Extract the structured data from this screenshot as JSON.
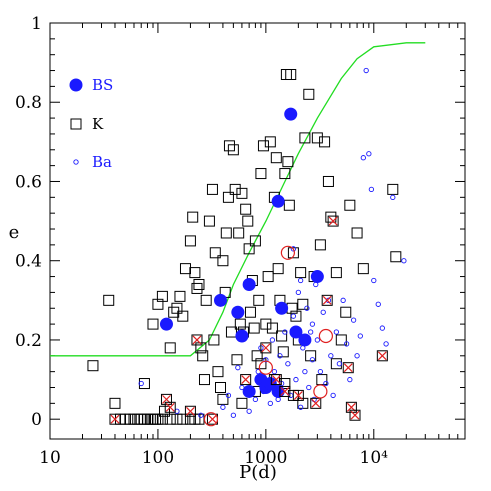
{
  "chart_data": {
    "type": "scatter",
    "xlabel": "P(d)",
    "ylabel": "e",
    "x_scale": "log",
    "xlim": [
      10,
      70000
    ],
    "ylim": [
      -0.05,
      1.0
    ],
    "xtick_labels": [
      {
        "value": 10,
        "label": "10"
      },
      {
        "value": 100,
        "label": "100"
      },
      {
        "value": 1000,
        "label": "1000"
      },
      {
        "value": 10000,
        "label": "10⁴"
      }
    ],
    "ytick_labels": [
      {
        "value": 0,
        "label": "0"
      },
      {
        "value": 0.2,
        "label": "0.2"
      },
      {
        "value": 0.4,
        "label": "0.4"
      },
      {
        "value": 0.6,
        "label": "0.6"
      },
      {
        "value": 0.8,
        "label": "0.8"
      },
      {
        "value": 1,
        "label": "1"
      }
    ],
    "grid": false,
    "legend_position": "top-left",
    "colors": {
      "BS": "#1a1aff",
      "K": "#000000",
      "Ba": "#1a1aff",
      "circled": "#e02020",
      "crossed": "#e02020",
      "curve": "#22dd22"
    },
    "series": [
      {
        "name": "BS",
        "marker": "filled-circle",
        "points": [
          [
            120,
            0.24
          ],
          [
            380,
            0.3
          ],
          [
            550,
            0.27
          ],
          [
            600,
            0.21
          ],
          [
            700,
            0.34
          ],
          [
            1300,
            0.55
          ],
          [
            1400,
            0.28
          ],
          [
            1700,
            0.77
          ],
          [
            1900,
            0.22
          ],
          [
            2300,
            0.2
          ],
          [
            3000,
            0.36
          ],
          [
            700,
            0.07
          ],
          [
            900,
            0.1
          ],
          [
            1000,
            0.08
          ],
          [
            1100,
            0.09
          ],
          [
            1300,
            0.07
          ]
        ]
      },
      {
        "name": "K",
        "marker": "open-square",
        "points": [
          [
            25,
            0.135
          ],
          [
            35,
            0.3
          ],
          [
            40,
            0.04
          ],
          [
            45,
            0.0
          ],
          [
            50,
            0.0
          ],
          [
            55,
            0.0
          ],
          [
            60,
            0.0
          ],
          [
            65,
            0.0
          ],
          [
            70,
            0.0
          ],
          [
            75,
            0.0
          ],
          [
            80,
            0.0
          ],
          [
            85,
            0.0
          ],
          [
            90,
            0.0
          ],
          [
            95,
            0.0
          ],
          [
            100,
            0.0
          ],
          [
            110,
            0.0
          ],
          [
            115,
            0.02
          ],
          [
            130,
            0.0
          ],
          [
            150,
            0.0
          ],
          [
            170,
            0.0
          ],
          [
            200,
            0.0
          ],
          [
            220,
            0.0
          ],
          [
            240,
            0.0
          ],
          [
            75,
            0.09
          ],
          [
            90,
            0.24
          ],
          [
            100,
            0.29
          ],
          [
            110,
            0.31
          ],
          [
            130,
            0.18
          ],
          [
            140,
            0.27
          ],
          [
            150,
            0.28
          ],
          [
            160,
            0.31
          ],
          [
            170,
            0.26
          ],
          [
            180,
            0.38
          ],
          [
            200,
            0.45
          ],
          [
            210,
            0.51
          ],
          [
            220,
            0.37
          ],
          [
            230,
            0.33
          ],
          [
            240,
            0.34
          ],
          [
            250,
            0.18
          ],
          [
            260,
            0.16
          ],
          [
            270,
            0.1
          ],
          [
            280,
            0.3
          ],
          [
            300,
            0.5
          ],
          [
            320,
            0.58
          ],
          [
            330,
            0.2
          ],
          [
            340,
            0.42
          ],
          [
            360,
            0.12
          ],
          [
            380,
            0.08
          ],
          [
            400,
            0.4
          ],
          [
            420,
            0.32
          ],
          [
            430,
            0.47
          ],
          [
            450,
            0.56
          ],
          [
            460,
            0.69
          ],
          [
            480,
            0.22
          ],
          [
            500,
            0.68
          ],
          [
            520,
            0.58
          ],
          [
            540,
            0.15
          ],
          [
            560,
            0.47
          ],
          [
            580,
            0.24
          ],
          [
            600,
            0.57
          ],
          [
            620,
            0.22
          ],
          [
            650,
            0.53
          ],
          [
            680,
            0.5
          ],
          [
            700,
            0.43
          ],
          [
            720,
            0.27
          ],
          [
            750,
            0.35
          ],
          [
            780,
            0.23
          ],
          [
            800,
            0.45
          ],
          [
            830,
            0.16
          ],
          [
            860,
            0.3
          ],
          [
            900,
            0.62
          ],
          [
            950,
            0.69
          ],
          [
            1000,
            0.24
          ],
          [
            1050,
            0.36
          ],
          [
            1100,
            0.7
          ],
          [
            1150,
            0.23
          ],
          [
            1200,
            0.56
          ],
          [
            1250,
            0.66
          ],
          [
            1300,
            0.38
          ],
          [
            1350,
            0.3
          ],
          [
            1400,
            0.21
          ],
          [
            1450,
            0.17
          ],
          [
            1500,
            0.62
          ],
          [
            1550,
            0.87
          ],
          [
            1600,
            0.65
          ],
          [
            1650,
            0.54
          ],
          [
            1700,
            0.87
          ],
          [
            1750,
            0.28
          ],
          [
            1800,
            0.42
          ],
          [
            1900,
            0.26
          ],
          [
            2000,
            0.2
          ],
          [
            2100,
            0.37
          ],
          [
            2200,
            0.29
          ],
          [
            2300,
            0.71
          ],
          [
            2500,
            0.82
          ],
          [
            2600,
            0.16
          ],
          [
            2800,
            0.36
          ],
          [
            3000,
            0.71
          ],
          [
            3200,
            0.44
          ],
          [
            3500,
            0.7
          ],
          [
            3800,
            0.6
          ],
          [
            4000,
            0.51
          ],
          [
            4500,
            0.37
          ],
          [
            5000,
            0.2
          ],
          [
            5500,
            0.27
          ],
          [
            6000,
            0.54
          ],
          [
            7000,
            0.47
          ],
          [
            8000,
            0.38
          ],
          [
            15000,
            0.58
          ],
          [
            16000,
            0.41
          ],
          [
            900,
            0.14
          ],
          [
            1200,
            0.1
          ],
          [
            1500,
            0.09
          ],
          [
            1800,
            0.06
          ],
          [
            2200,
            0.04
          ],
          [
            3300,
            0.1
          ],
          [
            4500,
            0.14
          ],
          [
            600,
            0.04
          ],
          [
            800,
            0.07
          ],
          [
            400,
            0.05
          ]
        ]
      },
      {
        "name": "Ba",
        "marker": "open-circle",
        "points": [
          [
            70,
            0.09
          ],
          [
            150,
            0.02
          ],
          [
            250,
            0.01
          ],
          [
            400,
            0.03
          ],
          [
            450,
            0.06
          ],
          [
            500,
            0.01
          ],
          [
            550,
            0.13
          ],
          [
            600,
            0.08
          ],
          [
            700,
            0.02
          ],
          [
            800,
            0.05
          ],
          [
            850,
            0.12
          ],
          [
            900,
            0.18
          ],
          [
            950,
            0.07
          ],
          [
            1000,
            0.15
          ],
          [
            1100,
            0.04
          ],
          [
            1150,
            0.2
          ],
          [
            1200,
            0.12
          ],
          [
            1300,
            0.05
          ],
          [
            1350,
            0.16
          ],
          [
            1400,
            0.09
          ],
          [
            1500,
            0.22
          ],
          [
            1600,
            0.14
          ],
          [
            1700,
            0.06
          ],
          [
            1800,
            0.26
          ],
          [
            1900,
            0.1
          ],
          [
            2000,
            0.32
          ],
          [
            2100,
            0.03
          ],
          [
            2200,
            0.18
          ],
          [
            2300,
            0.12
          ],
          [
            2400,
            0.28
          ],
          [
            2500,
            0.08
          ],
          [
            2600,
            0.22
          ],
          [
            2700,
            0.15
          ],
          [
            2800,
            0.05
          ],
          [
            2900,
            0.34
          ],
          [
            3000,
            0.2
          ],
          [
            3200,
            0.12
          ],
          [
            3400,
            0.27
          ],
          [
            3600,
            0.09
          ],
          [
            3800,
            0.3
          ],
          [
            4000,
            0.16
          ],
          [
            4200,
            0.06
          ],
          [
            4500,
            0.22
          ],
          [
            4800,
            0.14
          ],
          [
            5200,
            0.3
          ],
          [
            5600,
            0.19
          ],
          [
            6000,
            0.1
          ],
          [
            6500,
            0.25
          ],
          [
            7000,
            0.16
          ],
          [
            7500,
            0.21
          ],
          [
            8000,
            0.66
          ],
          [
            8500,
            0.88
          ],
          [
            9000,
            0.67
          ],
          [
            9500,
            0.58
          ],
          [
            10000,
            0.35
          ],
          [
            11000,
            0.29
          ],
          [
            12000,
            0.23
          ],
          [
            13000,
            0.19
          ],
          [
            15000,
            0.56
          ],
          [
            19000,
            0.4
          ],
          [
            1800,
            0.43
          ],
          [
            2100,
            0.35
          ],
          [
            2700,
            0.24
          ]
        ]
      }
    ],
    "circled_points": [
      [
        310,
        0.0
      ],
      [
        1000,
        0.13
      ],
      [
        1600,
        0.42
      ],
      [
        3200,
        0.07
      ],
      [
        3600,
        0.21
      ]
    ],
    "crossed_points": [
      [
        40,
        0.0
      ],
      [
        120,
        0.05
      ],
      [
        130,
        0.03
      ],
      [
        200,
        0.02
      ],
      [
        230,
        0.2
      ],
      [
        320,
        0.0
      ],
      [
        650,
        0.1
      ],
      [
        1000,
        0.18
      ],
      [
        1250,
        0.1
      ],
      [
        1500,
        0.07
      ],
      [
        2000,
        0.06
      ],
      [
        2900,
        0.04
      ],
      [
        3700,
        0.3
      ],
      [
        4200,
        0.5
      ],
      [
        5800,
        0.13
      ],
      [
        6200,
        0.03
      ],
      [
        6700,
        0.01
      ],
      [
        12000,
        0.16
      ]
    ],
    "curve": [
      [
        10,
        0.16
      ],
      [
        200,
        0.16
      ],
      [
        300,
        0.2
      ],
      [
        400,
        0.27
      ],
      [
        500,
        0.34
      ],
      [
        700,
        0.42
      ],
      [
        1000,
        0.5
      ],
      [
        1500,
        0.6
      ],
      [
        2000,
        0.67
      ],
      [
        3000,
        0.76
      ],
      [
        5000,
        0.86
      ],
      [
        7000,
        0.91
      ],
      [
        10000,
        0.94
      ],
      [
        20000,
        0.95
      ],
      [
        30000,
        0.95
      ]
    ],
    "legend": [
      {
        "series": "BS",
        "label": "BS"
      },
      {
        "series": "K",
        "label": "K"
      },
      {
        "series": "Ba",
        "label": "Ba"
      }
    ]
  }
}
